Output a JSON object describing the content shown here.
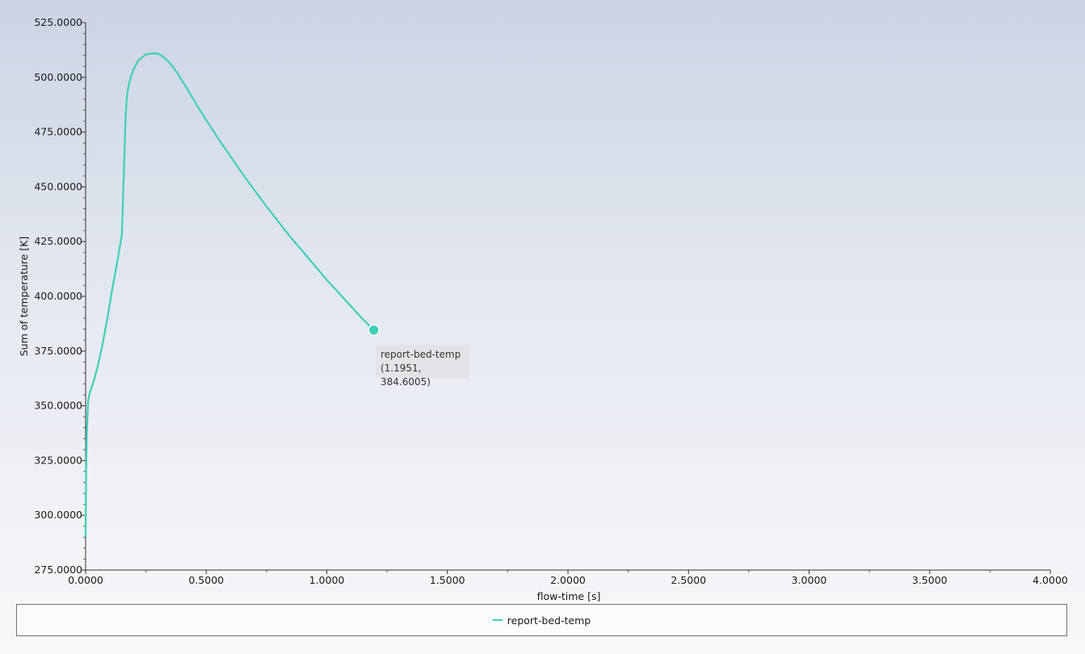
{
  "chart_data": {
    "type": "line",
    "title": "",
    "xlabel": "flow-time [s]",
    "ylabel": "Sum of temperature [K]",
    "xlim": [
      0,
      4
    ],
    "ylim": [
      275,
      525
    ],
    "x_ticks": [
      0,
      0.5,
      1,
      1.5,
      2,
      2.5,
      3,
      3.5,
      4
    ],
    "x_tick_labels": [
      "0.0000",
      "0.5000",
      "1.0000",
      "1.5000",
      "2.0000",
      "2.5000",
      "3.0000",
      "3.5000",
      "4.0000"
    ],
    "y_ticks": [
      275,
      300,
      325,
      350,
      375,
      400,
      425,
      450,
      475,
      500,
      525
    ],
    "y_tick_labels": [
      "275.0000",
      "300.0000",
      "325.0000",
      "350.0000",
      "375.0000",
      "400.0000",
      "425.0000",
      "450.0000",
      "475.0000",
      "500.0000",
      "525.0000"
    ],
    "grid": false,
    "legend_position": "bottom",
    "colors": {
      "series": "#3ed0b5"
    },
    "series": [
      {
        "name": "report-bed-temp",
        "x": [
          0.0,
          0.002,
          0.005,
          0.01,
          0.015,
          0.02,
          0.03,
          0.05,
          0.07,
          0.09,
          0.11,
          0.13,
          0.15,
          0.155,
          0.16,
          0.165,
          0.17,
          0.175,
          0.18,
          0.19,
          0.2,
          0.22,
          0.25,
          0.28,
          0.3,
          0.32,
          0.35,
          0.38,
          0.42,
          0.46,
          0.5,
          0.55,
          0.6,
          0.65,
          0.7,
          0.75,
          0.8,
          0.85,
          0.9,
          0.95,
          1.0,
          1.05,
          1.1,
          1.15,
          1.1951
        ],
        "values": [
          290,
          320,
          338,
          352,
          355,
          357,
          360,
          368,
          378,
          390,
          403,
          415,
          428,
          445,
          462,
          480,
          490,
          494,
          497,
          501,
          504,
          508,
          510.5,
          511,
          510.8,
          509.5,
          506.5,
          502,
          495,
          487.5,
          480.5,
          472,
          464,
          456,
          448.5,
          441,
          434,
          427,
          420.5,
          414,
          407.5,
          401.5,
          395.5,
          389.5,
          384.6
        ]
      }
    ],
    "annotations": [
      {
        "series": "report-bed-temp",
        "x": 1.1951,
        "y": 384.6005,
        "label": "(1.1951, 384.6005)"
      }
    ]
  },
  "tooltip": {
    "series_name": "report-bed-temp",
    "value_text": "(1.1951, 384.6005)"
  },
  "legend": {
    "items": [
      {
        "label": "report-bed-temp"
      }
    ]
  }
}
